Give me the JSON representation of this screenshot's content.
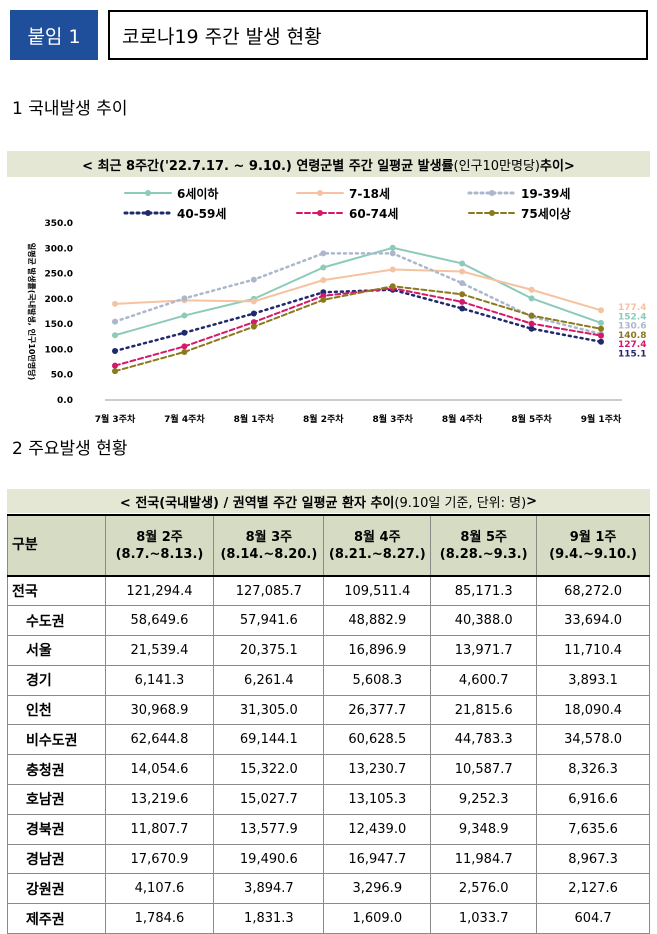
{
  "header": {
    "badge": "붙임 1",
    "title": "코로나19 주간 발생 현황"
  },
  "section1": "1  국내발생 추이",
  "section2": "2  주요발생 현황",
  "chart_title": {
    "main": "< 최근 8주간('22.7.17. ~ 9.10.) 연령군별 주간 일평균 발생률",
    "light": "(인구10만명당)",
    "end": " 추이>"
  },
  "colors": {
    "header_bg": "#e3e7d3",
    "badge_bg": "#1f4e9a",
    "table_header_bg": "#d6dbc4"
  },
  "chart_data": {
    "type": "line",
    "title": "< 최근 8주간('22.7.17. ~ 9.10.) 연령군별 주간 일평균 발생률(인구10만명당) 추이>",
    "ylabel": "일평균 발생률(국내발생, 인구10만명당)",
    "xlabel": "",
    "ylim": [
      0,
      350
    ],
    "yticks": [
      "0.0",
      "50.0",
      "100.0",
      "150.0",
      "200.0",
      "250.0",
      "300.0",
      "350.0"
    ],
    "categories": [
      "7월 3주차",
      "7월 4주차",
      "8월 1주차",
      "8월 2주차",
      "8월 3주차",
      "8월 4주차",
      "8월 5주차",
      "9월 1주차"
    ],
    "series": [
      {
        "name": "6세이하",
        "color": "#8ccbb8",
        "style": "solid",
        "values": [
          128,
          167,
          200,
          262,
          301,
          270,
          201,
          152.4
        ],
        "end_label": "152.4"
      },
      {
        "name": "7-18세",
        "color": "#f6c3a0",
        "style": "solid",
        "values": [
          190,
          197,
          195,
          237,
          258,
          254,
          218,
          177.4
        ],
        "end_label": "177.4"
      },
      {
        "name": "19-39세",
        "color": "#adb7cc",
        "style": "dotted",
        "values": [
          155,
          201,
          238,
          290,
          290,
          231,
          165,
          130.6
        ],
        "end_label": "130.6"
      },
      {
        "name": "40-59세",
        "color": "#1f2a6e",
        "style": "dotted",
        "values": [
          97,
          133,
          171,
          213,
          218,
          181,
          141,
          115.1
        ],
        "end_label": "115.1"
      },
      {
        "name": "60-74세",
        "color": "#d6186b",
        "style": "dashed",
        "values": [
          68,
          106,
          154,
          206,
          221,
          194,
          151,
          127.4
        ],
        "end_label": "127.4"
      },
      {
        "name": "75세이상",
        "color": "#8a7a1c",
        "style": "dashed",
        "values": [
          57,
          95,
          145,
          198,
          225,
          209,
          167,
          140.8
        ],
        "end_label": "140.8"
      }
    ]
  },
  "table_title": {
    "main": "< 전국(국내발생) / 권역별 주간 일평균 환자 추이",
    "light": " (9.10일 기준, 단위: 명)",
    "end": " >"
  },
  "table": {
    "header_region": "구분",
    "columns": [
      {
        "week": "8월 2주",
        "range": "(8.7.~8.13.)"
      },
      {
        "week": "8월 3주",
        "range": "(8.14.~8.20.)"
      },
      {
        "week": "8월 4주",
        "range": "(8.21.~8.27.)"
      },
      {
        "week": "8월 5주",
        "range": "(8.28.~9.3.)"
      },
      {
        "week": "9월 1주",
        "range": "(9.4.~9.10.)"
      }
    ],
    "rows": [
      {
        "region": "전국",
        "sub": false,
        "values": [
          "121,294.4",
          "127,085.7",
          "109,511.4",
          "85,171.3",
          "68,272.0"
        ]
      },
      {
        "region": "수도권",
        "sub": true,
        "values": [
          "58,649.6",
          "57,941.6",
          "48,882.9",
          "40,388.0",
          "33,694.0"
        ]
      },
      {
        "region": "서울",
        "sub": true,
        "values": [
          "21,539.4",
          "20,375.1",
          "16,896.9",
          "13,971.7",
          "11,710.4"
        ]
      },
      {
        "region": "경기",
        "sub": true,
        "values": [
          "6,141.3",
          "6,261.4",
          "5,608.3",
          "4,600.7",
          "3,893.1"
        ]
      },
      {
        "region": "인천",
        "sub": true,
        "values": [
          "30,968.9",
          "31,305.0",
          "26,377.7",
          "21,815.6",
          "18,090.4"
        ]
      },
      {
        "region": "비수도권",
        "sub": true,
        "values": [
          "62,644.8",
          "69,144.1",
          "60,628.5",
          "44,783.3",
          "34,578.0"
        ]
      },
      {
        "region": "충청권",
        "sub": true,
        "values": [
          "14,054.6",
          "15,322.0",
          "13,230.7",
          "10,587.7",
          "8,326.3"
        ]
      },
      {
        "region": "호남권",
        "sub": true,
        "values": [
          "13,219.6",
          "15,027.7",
          "13,105.3",
          "9,252.3",
          "6,916.6"
        ]
      },
      {
        "region": "경북권",
        "sub": true,
        "values": [
          "11,807.7",
          "13,577.9",
          "12,439.0",
          "9,348.9",
          "7,635.6"
        ]
      },
      {
        "region": "경남권",
        "sub": true,
        "values": [
          "17,670.9",
          "19,490.6",
          "16,947.7",
          "11,984.7",
          "8,967.3"
        ]
      },
      {
        "region": "강원권",
        "sub": true,
        "values": [
          "4,107.6",
          "3,894.7",
          "3,296.9",
          "2,576.0",
          "2,127.6"
        ]
      },
      {
        "region": "제주권",
        "sub": true,
        "values": [
          "1,784.6",
          "1,831.3",
          "1,609.0",
          "1,033.7",
          "604.7"
        ]
      }
    ]
  }
}
